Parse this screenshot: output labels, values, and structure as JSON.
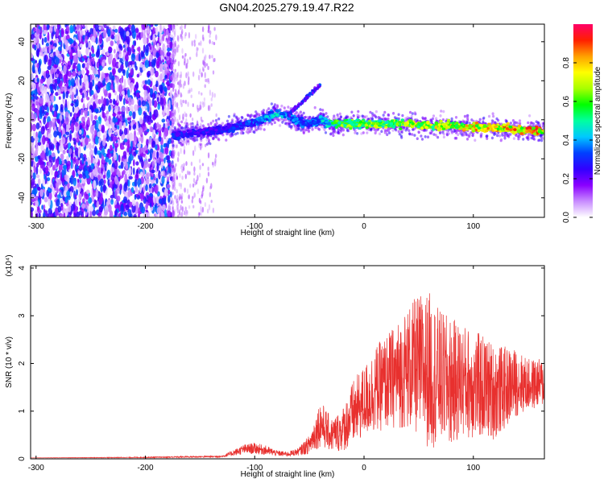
{
  "title": "GN04.2025.279.19.47.R22",
  "colors": {
    "snr_line": "#e8302e",
    "background": "#ffffff",
    "axis": "#000000"
  },
  "chart_data": [
    {
      "type": "heatmap",
      "xlabel": "Height of straight line (km)",
      "ylabel": "Frequency (Hz)",
      "xlim": [
        -305,
        165
      ],
      "ylim": [
        -50,
        49
      ],
      "xticks": [
        -300,
        -200,
        -100,
        0,
        100
      ],
      "yticks": [
        -40,
        -20,
        0,
        20,
        40
      ],
      "colorbar": {
        "label": "Normalized spectral amplitude",
        "range": [
          0,
          1
        ],
        "ticks": [
          0.0,
          0.2,
          0.4,
          0.6,
          0.8
        ],
        "tick_labels": [
          "0.0",
          "0.2",
          "0.4",
          "0.6",
          "0.8"
        ],
        "colormap": [
          "#ffffff",
          "#c88cff",
          "#8a00ff",
          "#3200ff",
          "#0040ff",
          "#00c8ff",
          "#00ffa0",
          "#00ff00",
          "#a8ff00",
          "#ffff00",
          "#ffa000",
          "#ff2000",
          "#ff0068"
        ]
      },
      "noise_region_x": [
        -305,
        -175
      ],
      "ridge": {
        "x": [
          -175,
          -160,
          -140,
          -120,
          -100,
          -90,
          -80,
          -70,
          -60,
          -50,
          -40,
          -30,
          -20,
          0,
          20,
          40,
          60,
          80,
          100,
          120,
          140,
          165
        ],
        "y": [
          -8,
          -7,
          -6,
          -4,
          -1,
          1,
          3,
          2,
          -1,
          -2,
          0,
          -2,
          -2,
          -2,
          -2,
          -2,
          -3,
          -3,
          -4,
          -4,
          -5,
          -6
        ],
        "amp": [
          0.35,
          0.3,
          0.3,
          0.35,
          0.4,
          0.45,
          0.5,
          0.45,
          0.4,
          0.4,
          0.45,
          0.6,
          0.7,
          0.72,
          0.75,
          0.78,
          0.8,
          0.85,
          0.9,
          0.92,
          0.95,
          0.97
        ]
      },
      "branch": {
        "x": [
          -70,
          -40
        ],
        "y": [
          2,
          18
        ]
      }
    },
    {
      "type": "line",
      "xlabel": "Height of straight line (km)",
      "ylabel": "SNR (10 * v/v)",
      "scale_label": "(x10⁴)",
      "xlim": [
        -305,
        165
      ],
      "ylim": [
        0,
        4.05
      ],
      "xticks": [
        -300,
        -200,
        -100,
        0,
        100
      ],
      "yticks": [
        0,
        1,
        2,
        3,
        4
      ],
      "series": [
        {
          "x": [
            -305,
            -200,
            -130,
            -120,
            -110,
            -100,
            -90,
            -80,
            -70,
            -60,
            -50,
            -40,
            -30,
            -20,
            -10,
            0,
            10,
            20,
            30,
            40,
            50,
            60,
            70,
            80,
            90,
            100,
            110,
            120,
            130,
            140,
            150,
            165
          ],
          "y": [
            0.02,
            0.03,
            0.05,
            0.12,
            0.2,
            0.22,
            0.18,
            0.12,
            0.1,
            0.15,
            0.3,
            0.75,
            0.5,
            0.6,
            0.95,
            1.2,
            1.45,
            1.6,
            1.75,
            1.9,
            1.95,
            1.85,
            1.7,
            1.6,
            1.65,
            1.55,
            1.5,
            1.4,
            1.5,
            1.6,
            1.55,
            1.6
          ],
          "spread": [
            0,
            0.01,
            0.02,
            0.06,
            0.1,
            0.12,
            0.1,
            0.06,
            0.05,
            0.08,
            0.2,
            0.5,
            0.35,
            0.45,
            0.7,
            0.75,
            0.9,
            1.0,
            1.1,
            1.3,
            1.5,
            1.65,
            1.4,
            1.35,
            1.2,
            1.15,
            1.1,
            1.0,
            0.85,
            0.7,
            0.55,
            0.5
          ]
        }
      ]
    }
  ]
}
